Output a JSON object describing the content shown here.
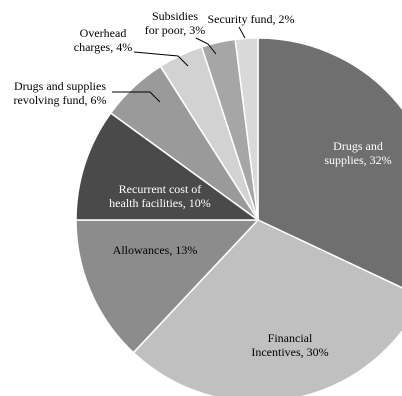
{
  "chart_data": {
    "type": "pie",
    "title": "",
    "start_angle_deg": 0,
    "direction": "clockwise",
    "slices": [
      {
        "lines": [
          "Drugs and",
          "supplies, 32%"
        ],
        "value": 32,
        "color": "#6f6f6f",
        "label_color": "light"
      },
      {
        "lines": [
          "Financial",
          "Incentives, 30%"
        ],
        "value": 30,
        "color": "#c0c0c0",
        "label_color": "dark"
      },
      {
        "lines": [
          "Allowances, 13%"
        ],
        "value": 13,
        "color": "#8c8c8c",
        "label_color": "dark"
      },
      {
        "lines": [
          "Recurrent cost of",
          "health facilities, 10%"
        ],
        "value": 10,
        "color": "#4a4a4a",
        "label_color": "light"
      },
      {
        "lines": [
          "Drugs and supplies",
          "revolving fund, 6%"
        ],
        "value": 6,
        "color": "#9a9a9a",
        "label_color": "dark"
      },
      {
        "lines": [
          "Overhead",
          "charges, 4%"
        ],
        "value": 4,
        "color": "#d2d2d2",
        "label_color": "dark"
      },
      {
        "lines": [
          "Subsidies",
          "for poor, 3%"
        ],
        "value": 3,
        "color": "#a6a6a6",
        "label_color": "dark"
      },
      {
        "lines": [
          "Security fund, 2%"
        ],
        "value": 2,
        "color": "#d9d9d9",
        "label_color": "dark"
      }
    ]
  }
}
